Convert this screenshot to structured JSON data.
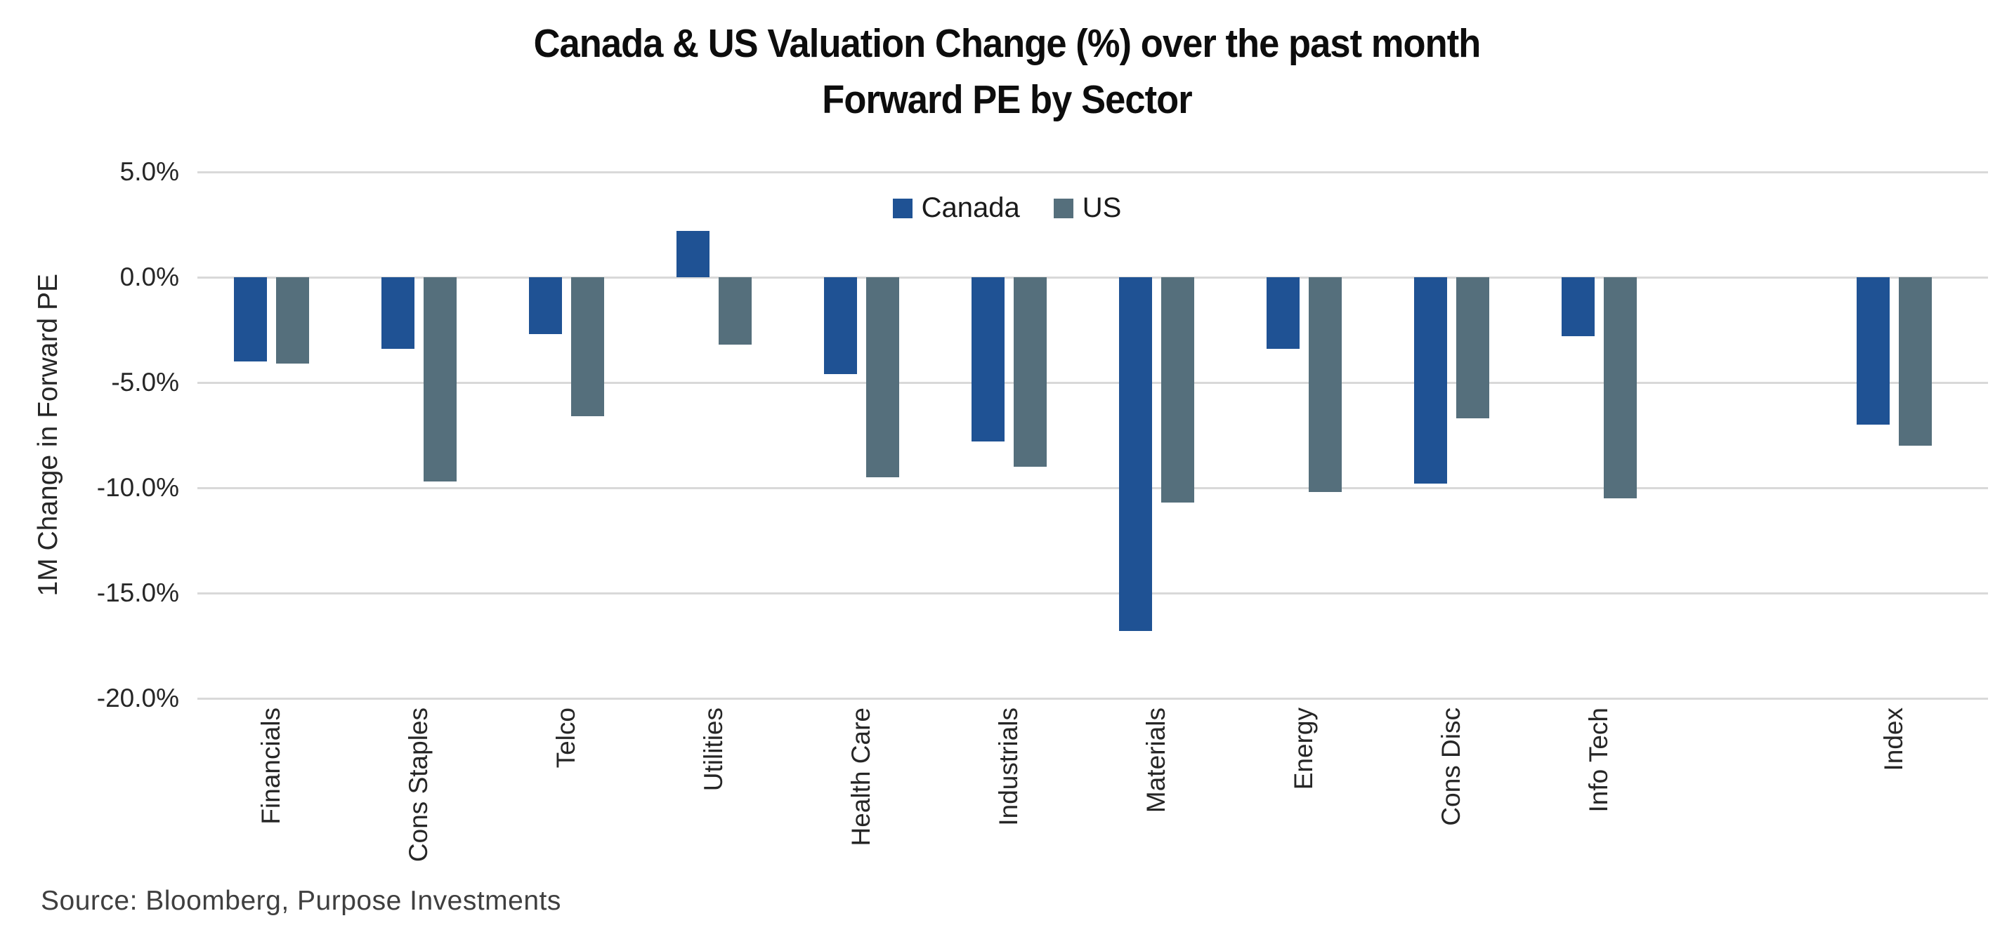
{
  "chart_data": {
    "type": "bar",
    "title_line1": "Canada & US Valuation Change (%) over the past month",
    "title_line2": "Forward PE by Sector",
    "ylabel": "1M Change in Forward PE",
    "source": "Source: Bloomberg, Purpose Investments",
    "legend": [
      {
        "name": "Canada",
        "color": "#1f5294"
      },
      {
        "name": "US",
        "color": "#556f7c"
      }
    ],
    "legend_position": "top-center",
    "grid": true,
    "ylim": [
      -20,
      5
    ],
    "y_ticks": [
      "5.0%",
      "0.0%",
      "-5.0%",
      "-10.0%",
      "-15.0%",
      "-20.0%"
    ],
    "categories": [
      {
        "label": "Financials",
        "canada": -4.0,
        "us": -4.1
      },
      {
        "label": "Cons Staples",
        "canada": -3.4,
        "us": -9.7
      },
      {
        "label": "Telco",
        "canada": -2.7,
        "us": -6.6
      },
      {
        "label": "Utilities",
        "canada": 2.2,
        "us": -3.2
      },
      {
        "label": "Health Care",
        "canada": -4.6,
        "us": -9.5
      },
      {
        "label": "Industrials",
        "canada": -7.8,
        "us": -9.0
      },
      {
        "label": "Materials",
        "canada": -16.8,
        "us": -10.7
      },
      {
        "label": "Energy",
        "canada": -3.4,
        "us": -10.2
      },
      {
        "label": "Cons Disc",
        "canada": -9.8,
        "us": -6.7
      },
      {
        "label": "Info Tech",
        "canada": -2.8,
        "us": -10.5
      },
      {
        "label": "",
        "canada": null,
        "us": null
      },
      {
        "label": "Index",
        "canada": -7.0,
        "us": -8.0
      }
    ],
    "colors": {
      "canada": "#1f5294",
      "us": "#556f7c",
      "gridline": "#d9d9d9",
      "background": "#ffffff"
    }
  }
}
